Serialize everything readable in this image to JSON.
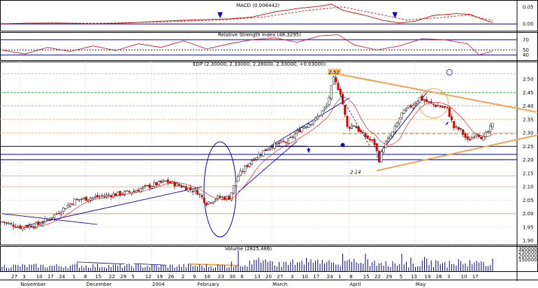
{
  "chart_data": {
    "type": "candlestick",
    "macd": {
      "title": "MACD (0.006442)",
      "ticks": [
        "0.05",
        "0.00"
      ],
      "ylim": [
        -0.02,
        0.07
      ],
      "line": [
        [
          0,
          0
        ],
        [
          10,
          0.002
        ],
        [
          25,
          0.003
        ],
        [
          40,
          0
        ],
        [
          55,
          0.003
        ],
        [
          70,
          0.008
        ],
        [
          85,
          0.012
        ],
        [
          100,
          0.015
        ],
        [
          110,
          0.02
        ],
        [
          120,
          0.035
        ],
        [
          130,
          0.045
        ],
        [
          140,
          0.052
        ],
        [
          145,
          0.058
        ],
        [
          150,
          0.04
        ],
        [
          160,
          0.025
        ],
        [
          168,
          0.01
        ],
        [
          175,
          0.003
        ],
        [
          182,
          0.008
        ],
        [
          190,
          0.025
        ],
        [
          200,
          0.03
        ],
        [
          206,
          0.028
        ],
        [
          213,
          0.01
        ],
        [
          216,
          0.004
        ]
      ],
      "signal": [
        [
          0,
          0.001
        ],
        [
          20,
          0.002
        ],
        [
          45,
          0.002
        ],
        [
          70,
          0.006
        ],
        [
          95,
          0.011
        ],
        [
          115,
          0.02
        ],
        [
          135,
          0.04
        ],
        [
          150,
          0.05
        ],
        [
          165,
          0.03
        ],
        [
          178,
          0.012
        ],
        [
          192,
          0.018
        ],
        [
          205,
          0.026
        ],
        [
          216,
          0.01
        ]
      ]
    },
    "rsi": {
      "title": "Relative Strength Index (48.3295)",
      "ticks": [
        "70",
        "50",
        "40"
      ],
      "ylim": [
        30,
        85
      ],
      "line": [
        [
          0,
          50
        ],
        [
          10,
          42
        ],
        [
          20,
          55
        ],
        [
          30,
          47
        ],
        [
          40,
          58
        ],
        [
          50,
          49
        ],
        [
          60,
          62
        ],
        [
          70,
          55
        ],
        [
          80,
          68
        ],
        [
          90,
          52
        ],
        [
          100,
          62
        ],
        [
          110,
          70
        ],
        [
          120,
          74
        ],
        [
          130,
          65
        ],
        [
          140,
          78
        ],
        [
          148,
          80
        ],
        [
          155,
          60
        ],
        [
          165,
          50
        ],
        [
          175,
          58
        ],
        [
          185,
          72
        ],
        [
          195,
          70
        ],
        [
          205,
          62
        ],
        [
          210,
          40
        ],
        [
          216,
          48
        ]
      ]
    },
    "price": {
      "title": "EDP (2.30000, 2.33000, 2.28000, 2.33000, +0.03000)",
      "ticks": [
        "2.50",
        "2.45",
        "2.40",
        "2.35",
        "2.30",
        "2.25",
        "2.20",
        "2.15",
        "2.10",
        "2.05",
        "2.00",
        "1.95",
        "1.90"
      ],
      "ylim": [
        1.885,
        2.565
      ],
      "annotations": [
        {
          "text": "2.52",
          "x": 146.5,
          "y": 2.52
        },
        {
          "text": "2.14",
          "x": 156,
          "y": 2.15
        }
      ]
    },
    "volume": {
      "title": "Volume (2825,486)",
      "ticks": [
        "300000",
        "250000",
        "200000",
        "150000"
      ],
      "ylim": [
        0,
        330000
      ]
    },
    "x_labels": [
      {
        "x": 4,
        "label": "27"
      },
      {
        "x": 9,
        "label": "3"
      },
      {
        "x": 15,
        "label": "10"
      },
      {
        "x": 20,
        "label": "17"
      },
      {
        "x": 25,
        "label": "24"
      },
      {
        "x": 31,
        "label": "1"
      },
      {
        "x": 36,
        "label": "8"
      },
      {
        "x": 41,
        "label": "15"
      },
      {
        "x": 47,
        "label": "22"
      },
      {
        "x": 52,
        "label": "29"
      },
      {
        "x": 57,
        "label": "5"
      },
      {
        "x": 63,
        "label": "12"
      },
      {
        "x": 68,
        "label": "19"
      },
      {
        "x": 73,
        "label": "26"
      },
      {
        "x": 79,
        "label": "2"
      },
      {
        "x": 84,
        "label": "9"
      },
      {
        "x": 89,
        "label": "16"
      },
      {
        "x": 95,
        "label": "23"
      },
      {
        "x": 100,
        "label": "30"
      },
      {
        "x": 105,
        "label": "6"
      },
      {
        "x": 111,
        "label": "13"
      },
      {
        "x": 116,
        "label": "20"
      },
      {
        "x": 121,
        "label": "27"
      },
      {
        "x": 127,
        "label": "3"
      },
      {
        "x": 132,
        "label": "10"
      },
      {
        "x": 137,
        "label": "17"
      },
      {
        "x": 143,
        "label": "24"
      },
      {
        "x": 148,
        "label": "1"
      },
      {
        "x": 153,
        "label": "8"
      },
      {
        "x": 159,
        "label": "15"
      },
      {
        "x": 164,
        "label": "22"
      },
      {
        "x": 169,
        "label": "29"
      },
      {
        "x": 175,
        "label": "5"
      },
      {
        "x": 180,
        "label": "13"
      },
      {
        "x": 186,
        "label": "19"
      },
      {
        "x": 191,
        "label": "26"
      },
      {
        "x": 196,
        "label": "3"
      },
      {
        "x": 202,
        "label": "10"
      },
      {
        "x": 207,
        "label": "17"
      }
    ],
    "month_labels": [
      {
        "x": 9,
        "label": "November"
      },
      {
        "x": 38,
        "label": "December"
      },
      {
        "x": 67,
        "label": "2004"
      },
      {
        "x": 87,
        "label": "February"
      },
      {
        "x": 120,
        "label": "March"
      },
      {
        "x": 154,
        "label": "April"
      },
      {
        "x": 183,
        "label": "May"
      }
    ]
  },
  "colors": {
    "up_candle": "#ffffff",
    "down_candle": "#e00000",
    "candle_outline": "#000000",
    "ma_line": "#cc0000",
    "indicator_line": "#cc0000",
    "trendline": "#0000aa",
    "orange": "#f4a04a",
    "h_blue": "#000080",
    "annotation_fill": "#f4c27a"
  }
}
